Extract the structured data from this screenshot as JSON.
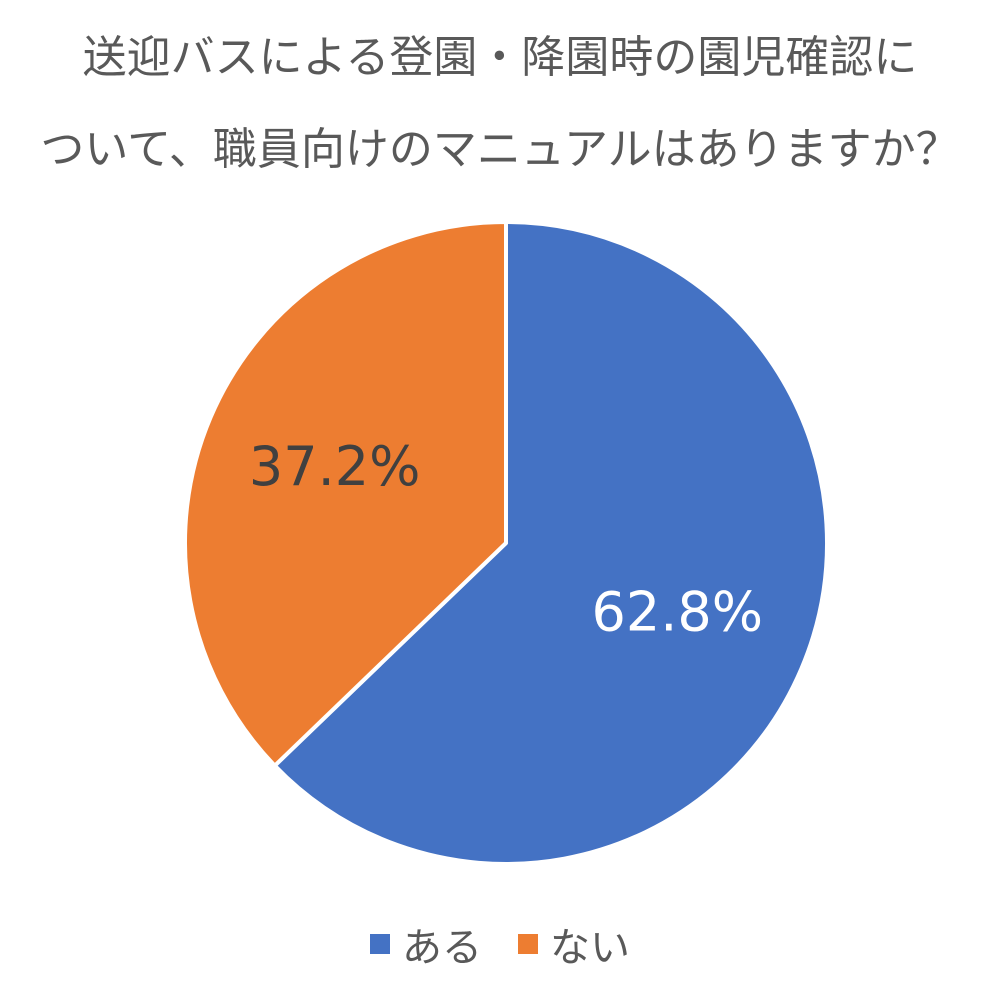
{
  "chart_data": {
    "type": "pie",
    "title_lines": [
      "送迎バスによる登園・降園時の園児確認に",
      "ついて、職員向けのマニュアルはありますか？"
    ],
    "categories": [
      "ある",
      "ない"
    ],
    "values": [
      62.8,
      37.2
    ],
    "data_labels": [
      "62.8%",
      "37.2%"
    ],
    "colors": [
      "#4472c4",
      "#ed7d31"
    ],
    "label_colors": [
      "#ffffff",
      "#404040"
    ],
    "legend_position": "bottom"
  }
}
